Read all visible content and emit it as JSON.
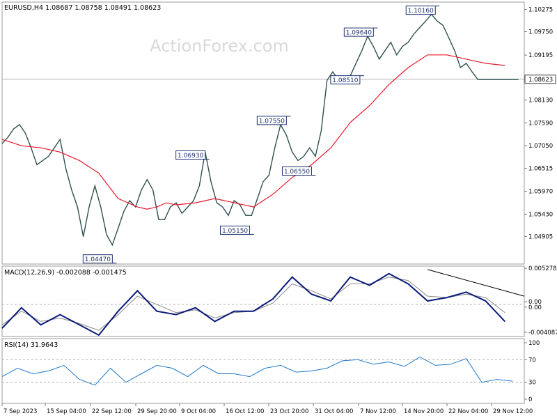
{
  "chart_data": [
    {
      "type": "line",
      "panel": "price",
      "title": "EURUSD,H4  1.08687 1.08758 1.08491 1.08623",
      "watermark": "ActionForex.com",
      "ylim": [
        1.0425,
        1.1045
      ],
      "y_ticks": [
        "1.10275",
        "1.09750",
        "1.09195",
        "1.08623",
        "1.08130",
        "1.07590",
        "1.07050",
        "1.06515",
        "1.05970",
        "1.05430",
        "1.04905"
      ],
      "last_price": "1.08623",
      "x_ticks": [
        "7 Sep 2023",
        "15 Sep 04:00",
        "22 Sep 12:00",
        "29 Sep 20:00",
        "9 Oct 04:00",
        "16 Oct 12:00",
        "23 Oct 20:00",
        "31 Oct 04:00",
        "7 Nov 12:00",
        "14 Nov 20:00",
        "22 Nov 04:00",
        "29 Nov 12:00"
      ],
      "close_series": {
        "name": "",
        "x": [
          0,
          3,
          6,
          9,
          12,
          15,
          18,
          21,
          24,
          27,
          30,
          33,
          36,
          39,
          42,
          45,
          48,
          51,
          54,
          57,
          60,
          63,
          66,
          69,
          72,
          75,
          78,
          81,
          84,
          87,
          90,
          93,
          96,
          99,
          102,
          105,
          108,
          111,
          114,
          117,
          120,
          123,
          126,
          129,
          132,
          135,
          138,
          141,
          144,
          147,
          150,
          153,
          156,
          159,
          162,
          165,
          168,
          171,
          174,
          177,
          180,
          183,
          186,
          189,
          192,
          195,
          198,
          201,
          204,
          207,
          210,
          213,
          216,
          219,
          222,
          225,
          228,
          231,
          234,
          237,
          240,
          243,
          246,
          249,
          252,
          255,
          258,
          261,
          264,
          267
        ],
        "values": [
          1.071,
          1.0725,
          1.0745,
          1.0755,
          1.0735,
          1.07,
          1.066,
          1.067,
          1.068,
          1.07,
          1.072,
          1.065,
          1.06,
          1.056,
          1.049,
          1.056,
          1.061,
          1.056,
          1.0495,
          1.047,
          1.051,
          1.055,
          1.0575,
          1.056,
          1.06,
          1.0625,
          1.06,
          1.053,
          1.053,
          1.056,
          1.057,
          1.0545,
          1.056,
          1.0575,
          1.061,
          1.069,
          1.062,
          1.057,
          1.056,
          1.054,
          1.0575,
          1.0565,
          1.054,
          1.054,
          1.058,
          1.062,
          1.0635,
          1.07,
          1.0755,
          1.073,
          1.069,
          1.067,
          1.068,
          1.07,
          1.068,
          1.074,
          1.086,
          1.088,
          1.086,
          1.0855,
          1.087,
          1.09,
          1.093,
          1.0964,
          1.094,
          1.091,
          1.093,
          1.095,
          1.092,
          1.094,
          1.095,
          1.097,
          1.0985,
          1.1,
          1.1016,
          1.1,
          1.099,
          1.096,
          1.093,
          1.089,
          1.09,
          1.088,
          1.0862,
          1.0862,
          1.0862,
          1.0862,
          1.0862,
          1.0862,
          1.0862,
          1.0862
        ]
      },
      "ma_series": {
        "name": "",
        "color": "#e8182a",
        "x": [
          0,
          10,
          20,
          30,
          40,
          50,
          60,
          70,
          75,
          80,
          85,
          90,
          100,
          110,
          120,
          130,
          140,
          150,
          160,
          170,
          180,
          190,
          200,
          210,
          220,
          230,
          240,
          250,
          260
        ],
        "values": [
          1.072,
          1.0705,
          1.07,
          1.069,
          1.067,
          1.064,
          1.058,
          1.056,
          1.0555,
          1.056,
          1.057,
          1.0565,
          1.057,
          1.058,
          1.057,
          1.056,
          1.059,
          1.063,
          1.066,
          1.07,
          1.076,
          1.08,
          1.085,
          1.089,
          1.092,
          1.092,
          1.091,
          1.09,
          1.0895
        ]
      },
      "annotations": [
        {
          "text": "1.04470",
          "x": 57,
          "y": 1.0447
        },
        {
          "text": "1.06930",
          "x": 105,
          "y": 1.0693
        },
        {
          "text": "1.05150",
          "x": 128,
          "y": 1.0515
        },
        {
          "text": "1.07550",
          "x": 147,
          "y": 1.0755
        },
        {
          "text": "1.06550",
          "x": 160,
          "y": 1.0655
        },
        {
          "text": "1.08510",
          "x": 185,
          "y": 1.0851
        },
        {
          "text": "1.09640",
          "x": 192,
          "y": 1.0964
        },
        {
          "text": "1.10160",
          "x": 224,
          "y": 1.1016
        }
      ]
    },
    {
      "type": "line",
      "panel": "macd",
      "title": "MACD(12,26,9) -0.002088 -0.001475",
      "ylim": [
        -0.0047,
        0.0056
      ],
      "y_ticks": [
        "0.005278",
        "0.00",
        "0.00",
        "-0.004087"
      ],
      "zero_level": 0.0,
      "macd_series": {
        "name": "",
        "color": "#0a1a7a",
        "x": [
          0,
          10,
          20,
          30,
          40,
          50,
          60,
          70,
          80,
          90,
          100,
          110,
          120,
          130,
          140,
          150,
          160,
          170,
          180,
          190,
          200,
          210,
          220,
          230,
          240,
          250,
          260
        ],
        "values": [
          -0.0035,
          -0.0005,
          -0.003,
          -0.0015,
          -0.003,
          -0.0045,
          -0.001,
          0.002,
          -0.001,
          -0.0015,
          -0.0005,
          -0.0025,
          -0.001,
          -0.001,
          0.0008,
          0.004,
          0.0015,
          0.0005,
          0.004,
          0.0028,
          0.0045,
          0.003,
          0.0005,
          0.001,
          0.0018,
          0.0005,
          -0.0025
        ]
      },
      "signal_series": {
        "name": "",
        "color": "#8a8a8a",
        "x": [
          0,
          10,
          20,
          30,
          40,
          50,
          60,
          70,
          80,
          90,
          100,
          110,
          120,
          130,
          140,
          150,
          160,
          170,
          180,
          190,
          200,
          210,
          220,
          230,
          240,
          250,
          260
        ],
        "values": [
          -0.003,
          -0.001,
          -0.0025,
          -0.002,
          -0.0028,
          -0.0038,
          -0.0015,
          0.0012,
          0.0,
          -0.0012,
          -0.0008,
          -0.002,
          -0.0012,
          -0.001,
          0.0002,
          0.003,
          0.002,
          0.0008,
          0.003,
          0.003,
          0.004,
          0.0035,
          0.0012,
          0.001,
          0.0015,
          0.001,
          -0.0012
        ]
      },
      "trendline": {
        "x": [
          220,
          280
        ],
        "values": [
          0.0051,
          0.0012
        ]
      }
    },
    {
      "type": "line",
      "panel": "rsi",
      "title": "RSI(14) 31.9643",
      "ylim": [
        0,
        100
      ],
      "y_ticks": [
        "100",
        "70",
        "30",
        "0"
      ],
      "levels": [
        70,
        30
      ],
      "rsi_series": {
        "name": "",
        "color": "#1e78c8",
        "x": [
          0,
          8,
          16,
          24,
          32,
          40,
          48,
          56,
          64,
          72,
          80,
          88,
          96,
          104,
          112,
          120,
          128,
          136,
          144,
          152,
          160,
          168,
          176,
          184,
          192,
          200,
          208,
          216,
          224,
          232,
          240,
          248,
          256,
          264
        ],
        "values": [
          40,
          55,
          45,
          50,
          60,
          35,
          25,
          55,
          30,
          45,
          60,
          55,
          40,
          60,
          45,
          45,
          40,
          55,
          60,
          48,
          50,
          55,
          68,
          70,
          62,
          66,
          58,
          75,
          60,
          62,
          72,
          30,
          35,
          32
        ]
      }
    }
  ]
}
